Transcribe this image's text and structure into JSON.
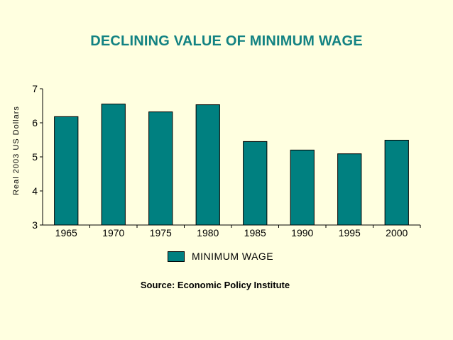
{
  "chart_data": {
    "type": "bar",
    "title": "DECLINING VALUE OF MINIMUM WAGE",
    "xlabel": "",
    "ylabel": "Real 2003 US Dollars",
    "categories": [
      "1965",
      "1970",
      "1975",
      "1980",
      "1985",
      "1990",
      "1995",
      "2000"
    ],
    "series": [
      {
        "name": "MINIMUM WAGE",
        "values": [
          6.18,
          6.55,
          6.32,
          6.53,
          5.45,
          5.2,
          5.09,
          5.49
        ]
      }
    ],
    "ylim": [
      3,
      7
    ],
    "yticks": [
      3,
      4,
      5,
      6,
      7
    ],
    "grid": false,
    "legend": "bottom",
    "colors": {
      "bar": "#008080",
      "title": "#128282",
      "background": "#FFFFE0"
    },
    "source": "Source: Economic Policy Institute"
  }
}
